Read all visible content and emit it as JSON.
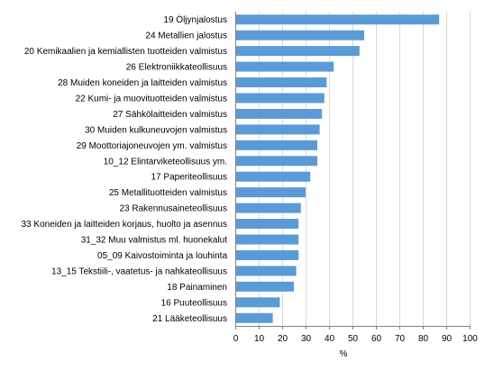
{
  "chart_data": {
    "type": "bar",
    "orientation": "horizontal",
    "categories": [
      "19 Öljynjalostus",
      "24 Metallien jalostus",
      "20 Kemikaalien ja kemiallisten tuotteiden valmistus",
      "26 Elektroniikkateollisuus",
      "28 Muiden koneiden ja laitteiden valmistus",
      "22 Kumi- ja muovituotteiden valmistus",
      "27 Sähkölaitteiden valmistus",
      "30 Muiden kulkuneuvojen valmistus",
      "29 Moottoriajoneuvojen ym. valmistus",
      "10_12 Elintarviketeollisuus ym.",
      "17 Paperiteollisuus",
      "25 Metallituotteiden valmistus",
      "23 Rakennusaineteollisuus",
      "33 Koneiden ja laitteiden korjaus, huolto ja asennus",
      "31_32 Muu valmistus ml. huonekalut",
      "05_09 Kaivostoiminta ja louhinta",
      "13_15 Tekstiili-, vaatetus- ja nahkateollisuus",
      "18 Painaminen",
      "16 Puuteollisuus",
      "21 Lääketeollisuus"
    ],
    "values": [
      87,
      55,
      53,
      42,
      39,
      38,
      37,
      36,
      35,
      35,
      32,
      30,
      28,
      27,
      27,
      27,
      26,
      25,
      19,
      16
    ],
    "xlabel": "%",
    "xlim": [
      0,
      100
    ],
    "xticks": [
      "0",
      "10",
      "20",
      "30",
      "40",
      "50",
      "60",
      "70",
      "80",
      "90",
      "100"
    ],
    "grid": true,
    "bar_color": "#5b9bd5",
    "grid_color": "#d9d9d9"
  }
}
